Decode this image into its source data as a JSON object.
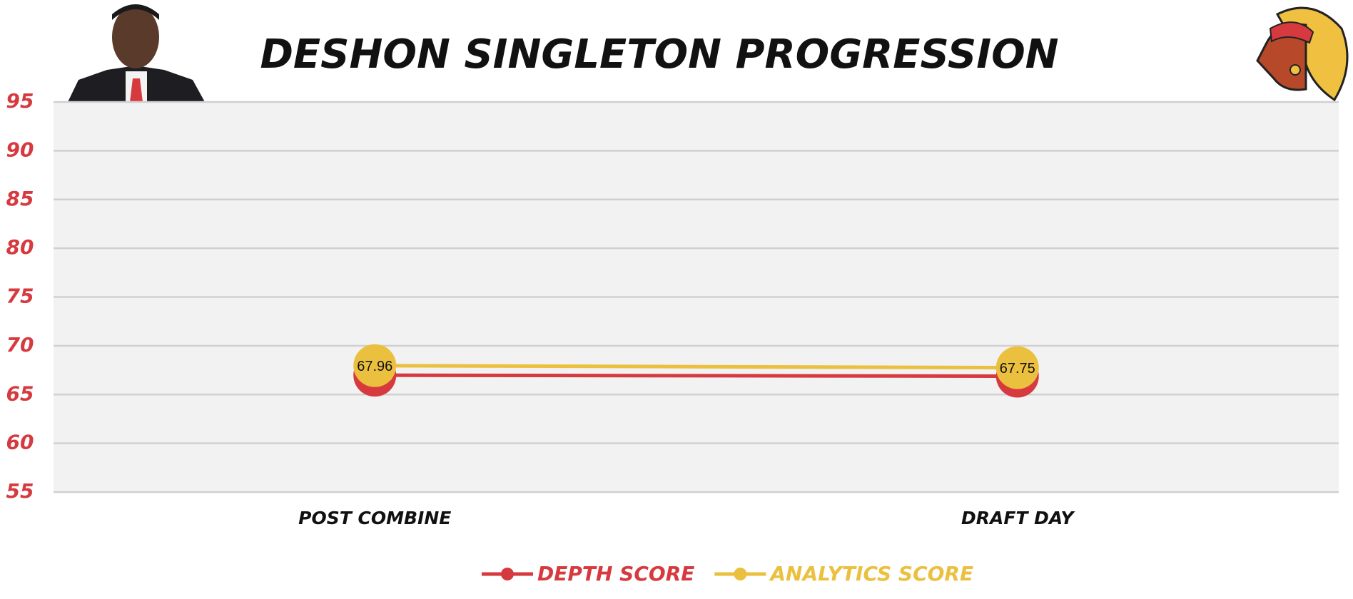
{
  "chart_data": {
    "type": "line",
    "title": "DESHON SINGLETON PROGRESSION",
    "categories": [
      "POST COMBINE",
      "DRAFT DAY"
    ],
    "series": [
      {
        "name": "DEPTH SCORE",
        "color": "#d63a3f",
        "values": [
          66.98,
          66.88
        ]
      },
      {
        "name": "ANALYTICS SCORE",
        "color": "#ebc03f",
        "values": [
          67.96,
          67.75
        ]
      }
    ],
    "ylim": [
      55,
      95
    ],
    "yticks": [
      55,
      60,
      65,
      70,
      75,
      80,
      85,
      90,
      95
    ],
    "grid": true
  }
}
